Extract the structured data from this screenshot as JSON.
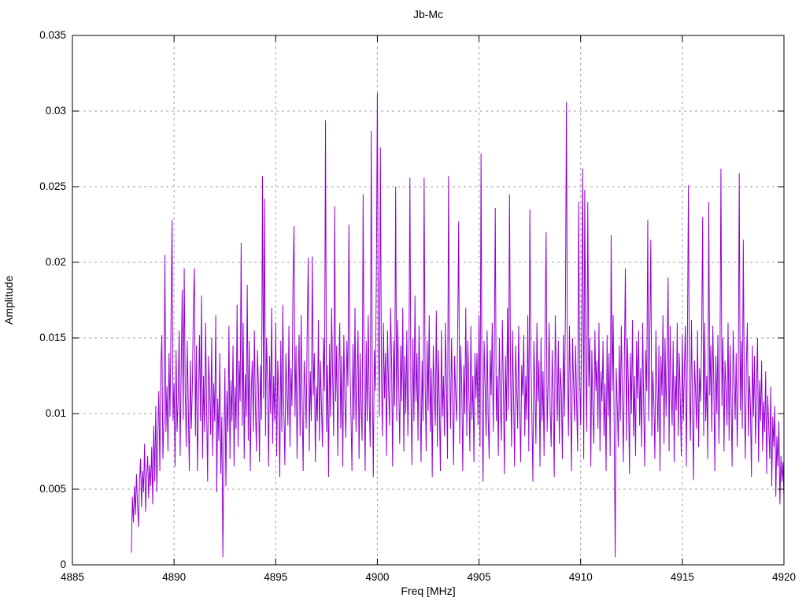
{
  "chart_data": {
    "type": "line",
    "title": "Jb-Mc",
    "xlabel": "Freq [MHz]",
    "ylabel": "Amplitude",
    "xlim": [
      4885,
      4920
    ],
    "ylim": [
      0,
      0.035
    ],
    "xticks": [
      4885,
      4890,
      4895,
      4900,
      4905,
      4910,
      4915,
      4920
    ],
    "xtick_labels": [
      "4885",
      "4890",
      "4895",
      "4900",
      "4905",
      "4910",
      "4915",
      "4920"
    ],
    "yticks": [
      0,
      0.005,
      0.01,
      0.015,
      0.02,
      0.025,
      0.03,
      0.035
    ],
    "ytick_labels": [
      "0",
      "0.005",
      "0.01",
      "0.015",
      "0.02",
      "0.025",
      "0.03",
      "0.035"
    ],
    "grid": true,
    "legend": "none",
    "line_color": "#9400d3",
    "grid_color": "#a0a0a0",
    "border_color": "#000000",
    "background": "#ffffff",
    "series": [
      {
        "name": "Jb-Mc",
        "x_start": 4887.9,
        "x_step": 0.05,
        "value_scale": 0.0001,
        "values": [
          8,
          45,
          28,
          52,
          33,
          60,
          41,
          25,
          55,
          70,
          38,
          62,
          48,
          80,
          35,
          58,
          72,
          44,
          66,
          52,
          78,
          40,
          92,
          55,
          105,
          48,
          85,
          115,
          62,
          130,
          152,
          70,
          95,
          205,
          88,
          118,
          75,
          140,
          98,
          160,
          228,
          95,
          120,
          65,
          142,
          88,
          110,
          155,
          72,
          128,
          182,
          96,
          196,
          115,
          78,
          148,
          105,
          62,
          135,
          90,
          118,
          170,
          196,
          85,
          145,
          62,
          108,
          152,
          95,
          178,
          70,
          125,
          88,
          160,
          105,
          55,
          138,
          115,
          86,
          150,
          72,
          120,
          95,
          165,
          48,
          110,
          82,
          140,
          60,
          98,
          5,
          75,
          130,
          52,
          115,
          88,
          158,
          70,
          122,
          95,
          145,
          65,
          118,
          90,
          172,
          78,
          135,
          108,
          213,
          92,
          160,
          70,
          126,
          98,
          185,
          82,
          148,
          62,
          116,
          135,
          88,
          155,
          105,
          75,
          142,
          118,
          68,
          132,
          96,
          257,
          110,
          242,
          85,
          150,
          122,
          65,
          138,
          100,
          170,
          80,
          125,
          95,
          160,
          72,
          135,
          110,
          58,
          148,
          88,
          172,
          102,
          66,
          140,
          115,
          92,
          158,
          78,
          130,
          105,
          185,
          224,
          98,
          145,
          70,
          122,
          152,
          85,
          165,
          108,
          62,
          135,
          118,
          90,
          156,
          203,
          75,
          128,
          95,
          204,
          112,
          140,
          68,
          118,
          95,
          162,
          82,
          135,
          105,
          78,
          150,
          115,
          294,
          88,
          132,
          58,
          146,
          98,
          170,
          125,
          85,
          237,
          108,
          145,
          72,
          128,
          160,
          90,
          138,
          65,
          152,
          110,
          84,
          148,
          118,
          225,
          135,
          100,
          62,
          146,
          96,
          170,
          88,
          125,
          155,
          70,
          140,
          105,
          82,
          245,
          118,
          62,
          148,
          95,
          165,
          108,
          78,
          287,
          130,
          58,
          142,
          115,
          190,
          312,
          150,
          98,
          276,
          125,
          85,
          160,
          110,
          140,
          72,
          155,
          118,
          92,
          170,
          135,
          65,
          148,
          105,
          250,
          95,
          162,
          118,
          80,
          145,
          108,
          170,
          75,
          138,
          100,
          155,
          85,
          128,
          256,
          115,
          66,
          150,
          95,
          178,
          108,
          140,
          82,
          158,
          112,
          68,
          135,
          95,
          256,
          120,
          75,
          148,
          102,
          165,
          88,
          130,
          58,
          145,
          115,
          92,
          168,
          78,
          142,
          105,
          62,
          155,
          98,
          125,
          85,
          160,
          118,
          70,
          257,
          135,
          90,
          150,
          108,
          66,
          138,
          112,
          95,
          152,
          227,
          80,
          145,
          118,
          62,
          132,
          100,
          170,
          85,
          148,
          115,
          75,
          158,
          96,
          125,
          68,
          140,
          110,
          140,
          92,
          165,
          78,
          272,
          105,
          55,
          148,
          118,
          85,
          155,
          98,
          70,
          142,
          112,
          160,
          88,
          135,
          236,
          95,
          125,
          72,
          150,
          108,
          82,
          162,
          115,
          60,
          138,
          95,
          170,
          102,
          245,
          128,
          78,
          155,
          110,
          65,
          145,
          118,
          90,
          158,
          105,
          68,
          132,
          112,
          152,
          85,
          125,
          96,
          165,
          75,
          235,
          140,
          100,
          55,
          148,
          115,
          80,
          160,
          108,
          135,
          65,
          150,
          95,
          128,
          72,
          155,
          220,
          88,
          118,
          160,
          102,
          78,
          142,
          110,
          58,
          165,
          125,
          95,
          148,
          80,
          130,
          115,
          70,
          152,
          98,
          168,
          306,
          135,
          85,
          158,
          112,
          62,
          150,
          120,
          95,
          145,
          108,
          75,
          240,
          125,
          92,
          160,
          262,
          70,
          248,
          132,
          88,
          240,
          118,
          150,
          65,
          142,
          102,
          80,
          155,
          115,
          135,
          90,
          160,
          75,
          128,
          108,
          148,
          85,
          120,
          62,
          152,
          98,
          140,
          72,
          218,
          115,
          165,
          88,
          5,
          130,
          105,
          78,
          145,
          95,
          158,
          112,
          68,
          135,
          196,
          82,
          150,
          118,
          60,
          140,
          100,
          162,
          85,
          125,
          72,
          148,
          110,
          155,
          92,
          130,
          78,
          160,
          105,
          65,
          142,
          115,
          228,
          95,
          150,
          215,
          85,
          128,
          108,
          70,
          155,
          120,
          88,
          145,
          62,
          138,
          112,
          165,
          80,
          150,
          98,
          135,
          190,
          75,
          158,
          115,
          92,
          148,
          68,
          125,
          102,
          160,
          85,
          140,
          110,
          72,
          152,
          95,
          128,
          158,
          65,
          145,
          251,
          118,
          82,
          162,
          105,
          56,
          135,
          115,
          90,
          155,
          78,
          130,
          108,
          148,
          230,
          85,
          160,
          95,
          125,
          70,
          240,
          112,
          145,
          88,
          158,
          118,
          62,
          138,
          100,
          152,
          80,
          128,
          262,
          105,
          150,
          75,
          135,
          115,
          92,
          160,
          82,
          145,
          108,
          65,
          155,
          125,
          96,
          140,
          78,
          118,
          259,
          102,
          148,
          90,
          215,
          112,
          70,
          132,
          160,
          85,
          125,
          105,
          58,
          145,
          98,
          138,
          80,
          115,
          150,
          68,
          122,
          95,
          135,
          75,
          108,
          88,
          128,
          60,
          112,
          92,
          70,
          118,
          52,
          98,
          78,
          105,
          45,
          85,
          65,
          95,
          40,
          72,
          55,
          68,
          45
        ]
      }
    ]
  }
}
